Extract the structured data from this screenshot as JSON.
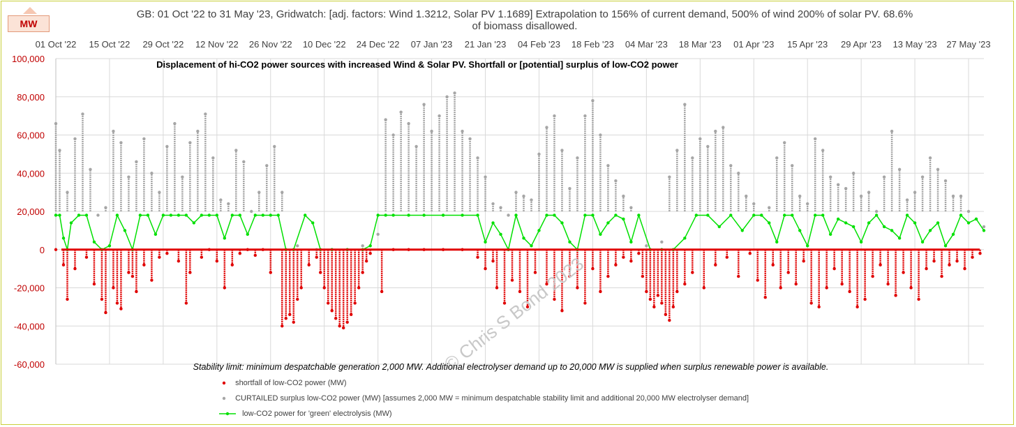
{
  "chart_data": {
    "type": "scatter",
    "title_line1": "GB: 01 Oct '22 to 31 May '23, Gridwatch: [adj. factors: Wind 1.3212, Solar PV 1.1689]    Extrapolation to 156% of current demand, 500% of wind  200% of solar PV.  68.6%",
    "title_line2": "of biomass disallowed.",
    "subtitle": "Displacement of hi-CO2 power sources with increased Wind & Solar PV.  Shortfall or [potential] surplus of low-CO2 power",
    "annotation": "Stability limit: minimum despatchable generation 2,000 MW.   Additional electrolyser demand up to 20,000 MW is supplied when surplus renewable power is available.",
    "watermark": "© Chris S Bond  2023",
    "unit_badge": "MW",
    "ylim": [
      -60000,
      100000
    ],
    "yticks": [
      -60000,
      -40000,
      -20000,
      0,
      20000,
      40000,
      60000,
      80000,
      100000
    ],
    "ytick_labels": [
      "-60,000",
      "-40,000",
      "-20,000",
      "0",
      "20,000",
      "40,000",
      "60,000",
      "80,000",
      "100,000"
    ],
    "xlim": [
      "2022-10-01",
      "2023-05-31"
    ],
    "xtick_dates": [
      "2022-10-01",
      "2022-10-15",
      "2022-10-29",
      "2022-11-12",
      "2022-11-26",
      "2022-12-10",
      "2022-12-24",
      "2023-01-07",
      "2023-01-21",
      "2023-02-04",
      "2023-02-18",
      "2023-03-04",
      "2023-03-18",
      "2023-04-01",
      "2023-04-15",
      "2023-04-29",
      "2023-05-13",
      "2023-05-27"
    ],
    "xtick_labels": [
      "01 Oct '22",
      "15 Oct '22",
      "29 Oct '22",
      "12 Nov '22",
      "26 Nov '22",
      "10 Dec '22",
      "24 Dec '22",
      "07 Jan '23",
      "21 Jan '23",
      "04 Feb '23",
      "18 Feb '23",
      "04 Mar '23",
      "18 Mar '23",
      "01 Apr '23",
      "15 Apr '23",
      "29 Apr '23",
      "13 May '23",
      "27 May '23"
    ],
    "grid": true,
    "legend_position": "bottom",
    "series": [
      {
        "name": "shortfall of low-CO2 power (MW)",
        "color": "#e00000",
        "marker": "dot",
        "x": [
          "2022-10-01",
          "2022-10-03",
          "2022-10-04",
          "2022-10-06",
          "2022-10-09",
          "2022-10-11",
          "2022-10-13",
          "2022-10-14",
          "2022-10-16",
          "2022-10-17",
          "2022-10-18",
          "2022-10-20",
          "2022-10-21",
          "2022-10-22",
          "2022-10-24",
          "2022-10-26",
          "2022-10-28",
          "2022-10-30",
          "2022-11-02",
          "2022-11-04",
          "2022-11-05",
          "2022-11-08",
          "2022-11-10",
          "2022-11-12",
          "2022-11-14",
          "2022-11-16",
          "2022-11-18",
          "2022-11-20",
          "2022-11-22",
          "2022-11-24",
          "2022-11-26",
          "2022-11-29",
          "2022-11-30",
          "2022-12-01",
          "2022-12-02",
          "2022-12-03",
          "2022-12-04",
          "2022-12-06",
          "2022-12-08",
          "2022-12-09",
          "2022-12-10",
          "2022-12-11",
          "2022-12-12",
          "2022-12-13",
          "2022-12-14",
          "2022-12-15",
          "2022-12-16",
          "2022-12-17",
          "2022-12-18",
          "2022-12-19",
          "2022-12-20",
          "2022-12-21",
          "2022-12-22",
          "2022-12-25",
          "2022-12-28",
          "2023-01-01",
          "2023-01-05",
          "2023-01-10",
          "2023-01-15",
          "2023-01-19",
          "2023-01-21",
          "2023-01-23",
          "2023-01-24",
          "2023-01-26",
          "2023-01-28",
          "2023-01-30",
          "2023-02-01",
          "2023-02-03",
          "2023-02-06",
          "2023-02-08",
          "2023-02-10",
          "2023-02-12",
          "2023-02-14",
          "2023-02-16",
          "2023-02-18",
          "2023-02-20",
          "2023-02-22",
          "2023-02-24",
          "2023-02-26",
          "2023-02-28",
          "2023-03-02",
          "2023-03-03",
          "2023-03-04",
          "2023-03-05",
          "2023-03-06",
          "2023-03-07",
          "2023-03-08",
          "2023-03-09",
          "2023-03-10",
          "2023-03-11",
          "2023-03-12",
          "2023-03-14",
          "2023-03-16",
          "2023-03-19",
          "2023-03-22",
          "2023-03-25",
          "2023-03-28",
          "2023-03-31",
          "2023-04-02",
          "2023-04-04",
          "2023-04-06",
          "2023-04-08",
          "2023-04-10",
          "2023-04-12",
          "2023-04-14",
          "2023-04-16",
          "2023-04-18",
          "2023-04-20",
          "2023-04-22",
          "2023-04-24",
          "2023-04-26",
          "2023-04-28",
          "2023-04-30",
          "2023-05-02",
          "2023-05-04",
          "2023-05-06",
          "2023-05-08",
          "2023-05-10",
          "2023-05-12",
          "2023-05-14",
          "2023-05-16",
          "2023-05-18",
          "2023-05-20",
          "2023-05-22",
          "2023-05-24",
          "2023-05-26",
          "2023-05-28",
          "2023-05-30"
        ],
        "y": [
          0,
          -8000,
          -26000,
          -10000,
          -4000,
          -18000,
          -26000,
          -33000,
          -20000,
          -28000,
          -31000,
          -12000,
          -14000,
          -22000,
          -8000,
          -16000,
          -4000,
          -2000,
          -6000,
          -28000,
          -12000,
          -4000,
          0,
          -6000,
          -20000,
          -8000,
          -2000,
          0,
          -3000,
          0,
          -12000,
          -40000,
          -36000,
          -34000,
          -38000,
          -26000,
          -20000,
          -8000,
          -4000,
          -12000,
          -20000,
          -28000,
          -32000,
          -36000,
          -40000,
          -41000,
          -38000,
          -34000,
          -28000,
          -20000,
          -12000,
          -6000,
          -2000,
          -22000,
          0,
          0,
          0,
          0,
          0,
          -4000,
          -10000,
          -6000,
          -20000,
          -28000,
          -16000,
          -22000,
          -30000,
          -12000,
          -18000,
          -26000,
          -32000,
          -14000,
          -20000,
          -28000,
          -10000,
          -22000,
          -14000,
          -8000,
          -4000,
          -6000,
          -2000,
          -14000,
          -22000,
          -26000,
          -30000,
          -24000,
          -28000,
          -34000,
          -37000,
          -30000,
          -22000,
          -18000,
          -12000,
          -20000,
          -8000,
          -4000,
          -14000,
          -2000,
          -16000,
          -25000,
          -8000,
          -20000,
          -12000,
          -18000,
          -6000,
          -28000,
          -30000,
          -20000,
          -10000,
          -18000,
          -22000,
          -30000,
          -26000,
          -14000,
          -8000,
          -18000,
          -24000,
          -12000,
          -20000,
          -26000,
          -10000,
          -6000,
          -14000,
          -8000,
          -6000,
          -10000,
          -4000,
          -2000
        ]
      },
      {
        "name": "CURTAILED surplus low-CO2 power (MW) [assumes 2,000 MW = minimum despatchable stability limit and additional 20,000 MW electrolyser demand]",
        "color": "#a6a6a6",
        "marker": "dot",
        "x": [
          "2022-10-01",
          "2022-10-02",
          "2022-10-04",
          "2022-10-06",
          "2022-10-08",
          "2022-10-10",
          "2022-10-12",
          "2022-10-14",
          "2022-10-16",
          "2022-10-18",
          "2022-10-20",
          "2022-10-22",
          "2022-10-24",
          "2022-10-26",
          "2022-10-28",
          "2022-10-30",
          "2022-11-01",
          "2022-11-03",
          "2022-11-05",
          "2022-11-07",
          "2022-11-09",
          "2022-11-11",
          "2022-11-13",
          "2022-11-15",
          "2022-11-17",
          "2022-11-19",
          "2022-11-21",
          "2022-11-23",
          "2022-11-25",
          "2022-11-27",
          "2022-11-29",
          "2022-12-03",
          "2022-12-08",
          "2022-12-12",
          "2022-12-16",
          "2022-12-20",
          "2022-12-24",
          "2022-12-26",
          "2022-12-28",
          "2022-12-30",
          "2023-01-01",
          "2023-01-03",
          "2023-01-05",
          "2023-01-07",
          "2023-01-09",
          "2023-01-11",
          "2023-01-13",
          "2023-01-15",
          "2023-01-17",
          "2023-01-19",
          "2023-01-21",
          "2023-01-23",
          "2023-01-25",
          "2023-01-27",
          "2023-01-29",
          "2023-01-31",
          "2023-02-02",
          "2023-02-04",
          "2023-02-06",
          "2023-02-08",
          "2023-02-10",
          "2023-02-12",
          "2023-02-14",
          "2023-02-16",
          "2023-02-18",
          "2023-02-20",
          "2023-02-22",
          "2023-02-24",
          "2023-02-26",
          "2023-02-28",
          "2023-03-04",
          "2023-03-08",
          "2023-03-10",
          "2023-03-12",
          "2023-03-14",
          "2023-03-16",
          "2023-03-18",
          "2023-03-20",
          "2023-03-22",
          "2023-03-24",
          "2023-03-26",
          "2023-03-28",
          "2023-03-30",
          "2023-04-01",
          "2023-04-03",
          "2023-04-05",
          "2023-04-07",
          "2023-04-09",
          "2023-04-11",
          "2023-04-13",
          "2023-04-15",
          "2023-04-17",
          "2023-04-19",
          "2023-04-21",
          "2023-04-23",
          "2023-04-25",
          "2023-04-27",
          "2023-04-29",
          "2023-05-01",
          "2023-05-03",
          "2023-05-05",
          "2023-05-07",
          "2023-05-09",
          "2023-05-11",
          "2023-05-13",
          "2023-05-15",
          "2023-05-17",
          "2023-05-19",
          "2023-05-21",
          "2023-05-23",
          "2023-05-25",
          "2023-05-27",
          "2023-05-29",
          "2023-05-31"
        ],
        "y": [
          66000,
          52000,
          30000,
          58000,
          71000,
          42000,
          18000,
          22000,
          62000,
          56000,
          38000,
          46000,
          58000,
          40000,
          30000,
          54000,
          66000,
          38000,
          56000,
          62000,
          71000,
          48000,
          26000,
          24000,
          52000,
          46000,
          20000,
          30000,
          44000,
          54000,
          30000,
          2000,
          0,
          0,
          0,
          2000,
          8000,
          68000,
          60000,
          72000,
          66000,
          54000,
          76000,
          62000,
          70000,
          80000,
          82000,
          62000,
          58000,
          48000,
          38000,
          24000,
          22000,
          18000,
          30000,
          28000,
          26000,
          50000,
          64000,
          70000,
          52000,
          32000,
          48000,
          70000,
          78000,
          60000,
          44000,
          36000,
          28000,
          22000,
          2000,
          4000,
          38000,
          52000,
          76000,
          48000,
          58000,
          54000,
          62000,
          64000,
          44000,
          40000,
          28000,
          24000,
          18000,
          22000,
          48000,
          56000,
          44000,
          28000,
          24000,
          58000,
          52000,
          38000,
          34000,
          32000,
          40000,
          28000,
          30000,
          20000,
          38000,
          62000,
          42000,
          26000,
          30000,
          38000,
          48000,
          42000,
          36000,
          28000,
          28000,
          20000,
          16000,
          12000
        ]
      },
      {
        "name": "low-CO2 power for 'green' electrolysis (MW)",
        "color": "#00e000",
        "marker": "line-dot",
        "x": [
          "2022-10-01",
          "2022-10-02",
          "2022-10-03",
          "2022-10-04",
          "2022-10-05",
          "2022-10-07",
          "2022-10-09",
          "2022-10-11",
          "2022-10-13",
          "2022-10-15",
          "2022-10-17",
          "2022-10-19",
          "2022-10-21",
          "2022-10-23",
          "2022-10-25",
          "2022-10-27",
          "2022-10-29",
          "2022-10-31",
          "2022-11-02",
          "2022-11-04",
          "2022-11-06",
          "2022-11-08",
          "2022-11-10",
          "2022-11-12",
          "2022-11-14",
          "2022-11-16",
          "2022-11-18",
          "2022-11-20",
          "2022-11-22",
          "2022-11-24",
          "2022-11-26",
          "2022-11-28",
          "2022-11-30",
          "2022-12-02",
          "2022-12-05",
          "2022-12-07",
          "2022-12-09",
          "2022-12-12",
          "2022-12-16",
          "2022-12-20",
          "2022-12-22",
          "2022-12-24",
          "2022-12-26",
          "2022-12-28",
          "2023-01-01",
          "2023-01-05",
          "2023-01-10",
          "2023-01-15",
          "2023-01-19",
          "2023-01-21",
          "2023-01-23",
          "2023-01-25",
          "2023-01-27",
          "2023-01-29",
          "2023-01-31",
          "2023-02-02",
          "2023-02-04",
          "2023-02-06",
          "2023-02-08",
          "2023-02-10",
          "2023-02-12",
          "2023-02-14",
          "2023-02-16",
          "2023-02-18",
          "2023-02-20",
          "2023-02-22",
          "2023-02-24",
          "2023-02-26",
          "2023-02-28",
          "2023-03-02",
          "2023-03-05",
          "2023-03-08",
          "2023-03-11",
          "2023-03-14",
          "2023-03-17",
          "2023-03-20",
          "2023-03-23",
          "2023-03-26",
          "2023-03-29",
          "2023-04-01",
          "2023-04-03",
          "2023-04-05",
          "2023-04-07",
          "2023-04-09",
          "2023-04-11",
          "2023-04-13",
          "2023-04-15",
          "2023-04-17",
          "2023-04-19",
          "2023-04-21",
          "2023-04-23",
          "2023-04-25",
          "2023-04-27",
          "2023-04-29",
          "2023-05-01",
          "2023-05-03",
          "2023-05-05",
          "2023-05-07",
          "2023-05-09",
          "2023-05-11",
          "2023-05-13",
          "2023-05-15",
          "2023-05-17",
          "2023-05-19",
          "2023-05-21",
          "2023-05-23",
          "2023-05-25",
          "2023-05-27",
          "2023-05-29",
          "2023-05-31"
        ],
        "y": [
          18000,
          18000,
          6000,
          0,
          14000,
          18000,
          18000,
          4000,
          0,
          2000,
          18000,
          10000,
          0,
          18000,
          18000,
          8000,
          18000,
          18000,
          18000,
          18000,
          14000,
          18000,
          18000,
          18000,
          6000,
          18000,
          18000,
          8000,
          18000,
          18000,
          18000,
          18000,
          0,
          0,
          18000,
          14000,
          0,
          0,
          0,
          0,
          2000,
          18000,
          18000,
          18000,
          18000,
          18000,
          18000,
          18000,
          18000,
          4000,
          14000,
          8000,
          0,
          18000,
          6000,
          2000,
          10000,
          18000,
          18000,
          14000,
          4000,
          0,
          18000,
          18000,
          8000,
          14000,
          18000,
          16000,
          4000,
          18000,
          0,
          0,
          0,
          6000,
          18000,
          18000,
          12000,
          18000,
          10000,
          18000,
          18000,
          14000,
          4000,
          18000,
          18000,
          10000,
          2000,
          18000,
          18000,
          8000,
          16000,
          14000,
          12000,
          4000,
          14000,
          18000,
          12000,
          10000,
          6000,
          18000,
          14000,
          4000,
          10000,
          14000,
          2000,
          8000,
          18000,
          14000,
          16000,
          10000
        ]
      }
    ]
  }
}
